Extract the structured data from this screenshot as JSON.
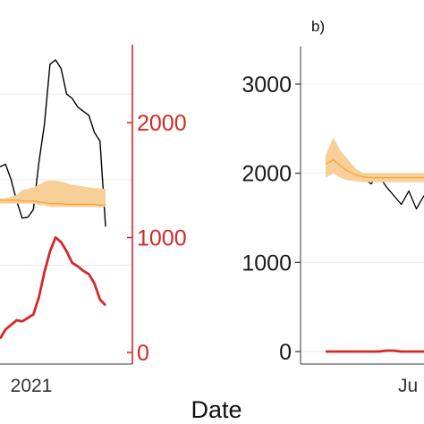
{
  "chart_data": [
    {
      "panel_label": "",
      "type": "line",
      "xlabel": "Date",
      "x_tick_labels": [
        "2021"
      ],
      "left_axis": {
        "ylim": [
          0,
          3400
        ],
        "tick_labels": [],
        "grid": true
      },
      "right_axis": {
        "ylim": [
          0,
          2600
        ],
        "tick_labels": [
          "0",
          "1000",
          "2000"
        ],
        "color": "#d62728"
      },
      "series": [
        {
          "axis": "left",
          "color": "#000000",
          "kind": "line",
          "x": [
            0,
            1,
            2,
            3,
            4,
            5,
            6,
            7,
            8,
            9,
            10,
            11,
            12,
            13,
            14,
            15,
            16,
            17,
            18,
            19
          ],
          "y": [
            2150,
            2180,
            2000,
            1750,
            1550,
            1560,
            1650,
            2200,
            2650,
            3350,
            3400,
            3300,
            3000,
            2950,
            2850,
            2800,
            2750,
            2550,
            2450,
            1450
          ]
        },
        {
          "axis": "left",
          "color": "#f6a63c",
          "kind": "band",
          "x": [
            0,
            1,
            2,
            3,
            4,
            5,
            6,
            7,
            8,
            9,
            10,
            11,
            12,
            13,
            14,
            15,
            16,
            17,
            18,
            19
          ],
          "lower": [
            1720,
            1720,
            1720,
            1720,
            1720,
            1720,
            1720,
            1700,
            1700,
            1680,
            1680,
            1680,
            1680,
            1680,
            1680,
            1680,
            1680,
            1680,
            1680,
            1680
          ],
          "upper": [
            1780,
            1780,
            1800,
            1820,
            1880,
            1890,
            1910,
            1940,
            1980,
            1990,
            1990,
            1980,
            1960,
            1940,
            1930,
            1920,
            1910,
            1900,
            1900,
            1890
          ],
          "center": [
            1760,
            1760,
            1760,
            1760,
            1750,
            1750,
            1750,
            1740,
            1730,
            1720,
            1720,
            1720,
            1710,
            1710,
            1710,
            1710,
            1710,
            1710,
            1700,
            1700
          ]
        },
        {
          "axis": "right",
          "color": "#d62728",
          "kind": "line",
          "x": [
            0,
            1,
            2,
            3,
            4,
            5,
            6,
            7,
            8,
            9,
            10,
            11,
            12,
            13,
            14,
            15,
            16,
            17,
            18,
            19
          ],
          "y": [
            120,
            200,
            240,
            280,
            270,
            300,
            330,
            480,
            700,
            880,
            1000,
            960,
            880,
            780,
            750,
            710,
            680,
            600,
            460,
            410
          ]
        }
      ]
    },
    {
      "panel_label": "b)",
      "type": "line",
      "xlabel": "",
      "x_tick_labels": [
        "Ju"
      ],
      "ylim": [
        -100,
        3400
      ],
      "y_tick_labels": [
        "0",
        "1000",
        "2000",
        "3000"
      ],
      "grid": true,
      "series": [
        {
          "color": "#000000",
          "kind": "line",
          "x": [
            0,
            1,
            2,
            3,
            4,
            5,
            6,
            7,
            8,
            9,
            10,
            11,
            12,
            13
          ],
          "y": [
            2130,
            2150,
            2050,
            2000,
            1980,
            1950,
            1880,
            1980,
            1850,
            1750,
            1650,
            1800,
            1600,
            1750
          ]
        },
        {
          "color": "#f6a63c",
          "kind": "band",
          "x": [
            0,
            1,
            2,
            3,
            4,
            5,
            6,
            7,
            8,
            9,
            10,
            11,
            12,
            13
          ],
          "lower": [
            1950,
            2000,
            1950,
            1920,
            1910,
            1900,
            1900,
            1900,
            1900,
            1900,
            1900,
            1900,
            1900,
            1900
          ],
          "upper": [
            2200,
            2400,
            2250,
            2150,
            2050,
            2000,
            2000,
            2000,
            2000,
            2000,
            2000,
            2000,
            2000,
            2000
          ],
          "center": [
            2100,
            2150,
            2080,
            2020,
            1980,
            1960,
            1950,
            1950,
            1950,
            1950,
            1950,
            1950,
            1950,
            1950
          ]
        },
        {
          "color": "#d62728",
          "kind": "line",
          "x": [
            0,
            1,
            2,
            3,
            4,
            5,
            6,
            7,
            8,
            9,
            10,
            11,
            12,
            13
          ],
          "y": [
            0,
            0,
            0,
            0,
            0,
            0,
            0,
            0,
            10,
            10,
            0,
            0,
            0,
            0
          ]
        }
      ]
    }
  ]
}
